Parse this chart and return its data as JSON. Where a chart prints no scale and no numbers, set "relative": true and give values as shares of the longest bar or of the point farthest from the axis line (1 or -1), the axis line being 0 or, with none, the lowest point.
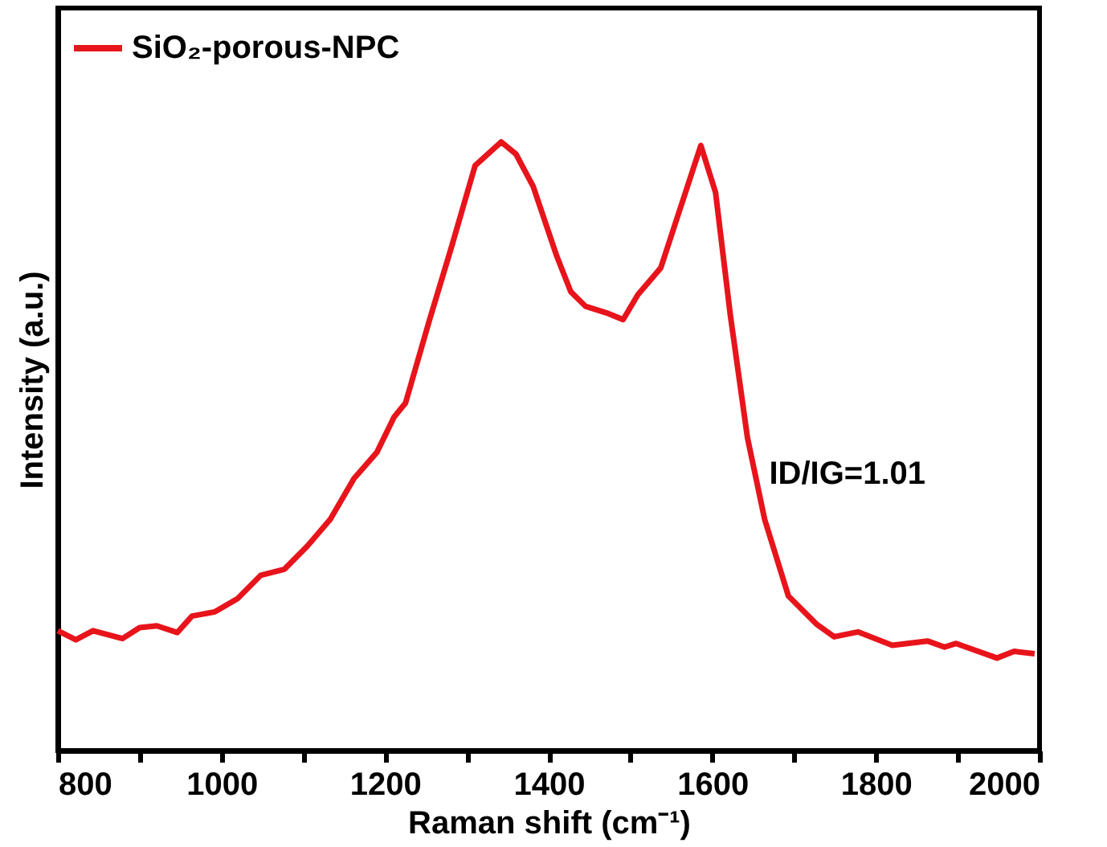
{
  "chart_data": {
    "type": "line",
    "relative": true,
    "xlabel": "Raman shift (cm⁻¹)",
    "ylabel": "Intensity (a.u.)",
    "xlim": [
      800,
      2000
    ],
    "xticks": [
      800,
      {
        "value": 900,
        "label": null
      },
      1000,
      {
        "value": 1100,
        "label": null
      },
      1200,
      {
        "value": 1300,
        "label": null
      },
      1400,
      {
        "value": 1500,
        "label": null
      },
      1600,
      {
        "value": 1700,
        "label": null
      },
      1800,
      {
        "value": 1900,
        "label": null
      },
      2000
    ],
    "x": [
      800,
      822,
      843,
      879,
      900,
      921,
      946,
      964,
      992,
      1020,
      1048,
      1077,
      1105,
      1133,
      1162,
      1190,
      1211,
      1225,
      1254,
      1282,
      1310,
      1342,
      1360,
      1381,
      1410,
      1427,
      1445,
      1473,
      1491,
      1509,
      1537,
      1565,
      1586,
      1604,
      1622,
      1643,
      1664,
      1693,
      1728,
      1749,
      1778,
      1820,
      1863,
      1884,
      1898,
      1948,
      1969,
      1994
    ],
    "series": [
      {
        "name": "SiO₂-porous-NPC",
        "color": "#e8141b",
        "values": [
          0.197,
          0.182,
          0.197,
          0.184,
          0.202,
          0.205,
          0.194,
          0.221,
          0.228,
          0.25,
          0.288,
          0.298,
          0.336,
          0.38,
          0.447,
          0.49,
          0.548,
          0.571,
          0.706,
          0.831,
          0.961,
          1.0,
          0.98,
          0.927,
          0.812,
          0.754,
          0.73,
          0.718,
          0.708,
          0.749,
          0.793,
          0.908,
          0.994,
          0.917,
          0.716,
          0.514,
          0.38,
          0.254,
          0.207,
          0.187,
          0.195,
          0.173,
          0.18,
          0.17,
          0.176,
          0.152,
          0.163,
          0.159
        ]
      }
    ],
    "annotations": [
      "ID/IG=1.01"
    ],
    "legend": "top left",
    "grid": false,
    "marker": "none",
    "line_style": "solid"
  }
}
